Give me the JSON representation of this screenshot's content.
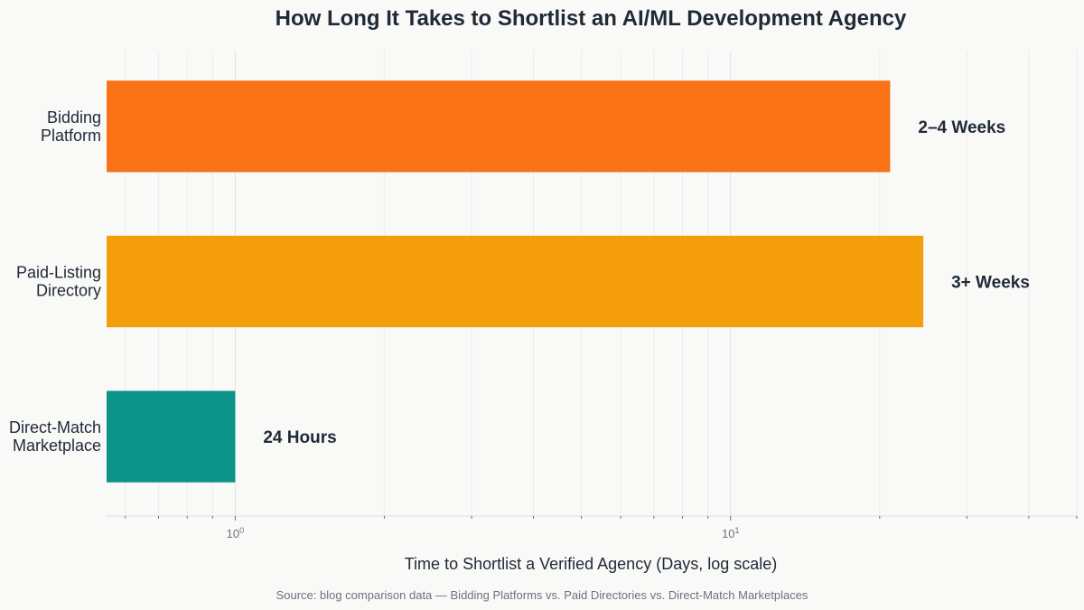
{
  "chart_data": {
    "type": "bar",
    "orientation": "horizontal",
    "title": "How Long It Takes to Shortlist an AI/ML Development Agency",
    "xlabel": "Time to Shortlist a Verified Agency (Days, log scale)",
    "ylabel": "",
    "x_scale": "log",
    "xlim": [
      0.55,
      50
    ],
    "grid": true,
    "categories": [
      "Bidding\nPlatform",
      "Paid-Listing\nDirectory",
      "Direct-Match\nMarketplace"
    ],
    "values": [
      21,
      24.5,
      1
    ],
    "data_labels": [
      "2–4 Weeks",
      "3+ Weeks",
      "24 Hours"
    ],
    "colors": [
      "#f97316",
      "#f59e0b",
      "#0d9488"
    ],
    "x_ticks": [
      {
        "value": 1,
        "base": "10",
        "exp": "0"
      },
      {
        "value": 10,
        "base": "10",
        "exp": "1"
      }
    ],
    "source": "Source: blog comparison data — Bidding Platforms vs. Paid Directories vs. Direct-Match Marketplaces"
  }
}
